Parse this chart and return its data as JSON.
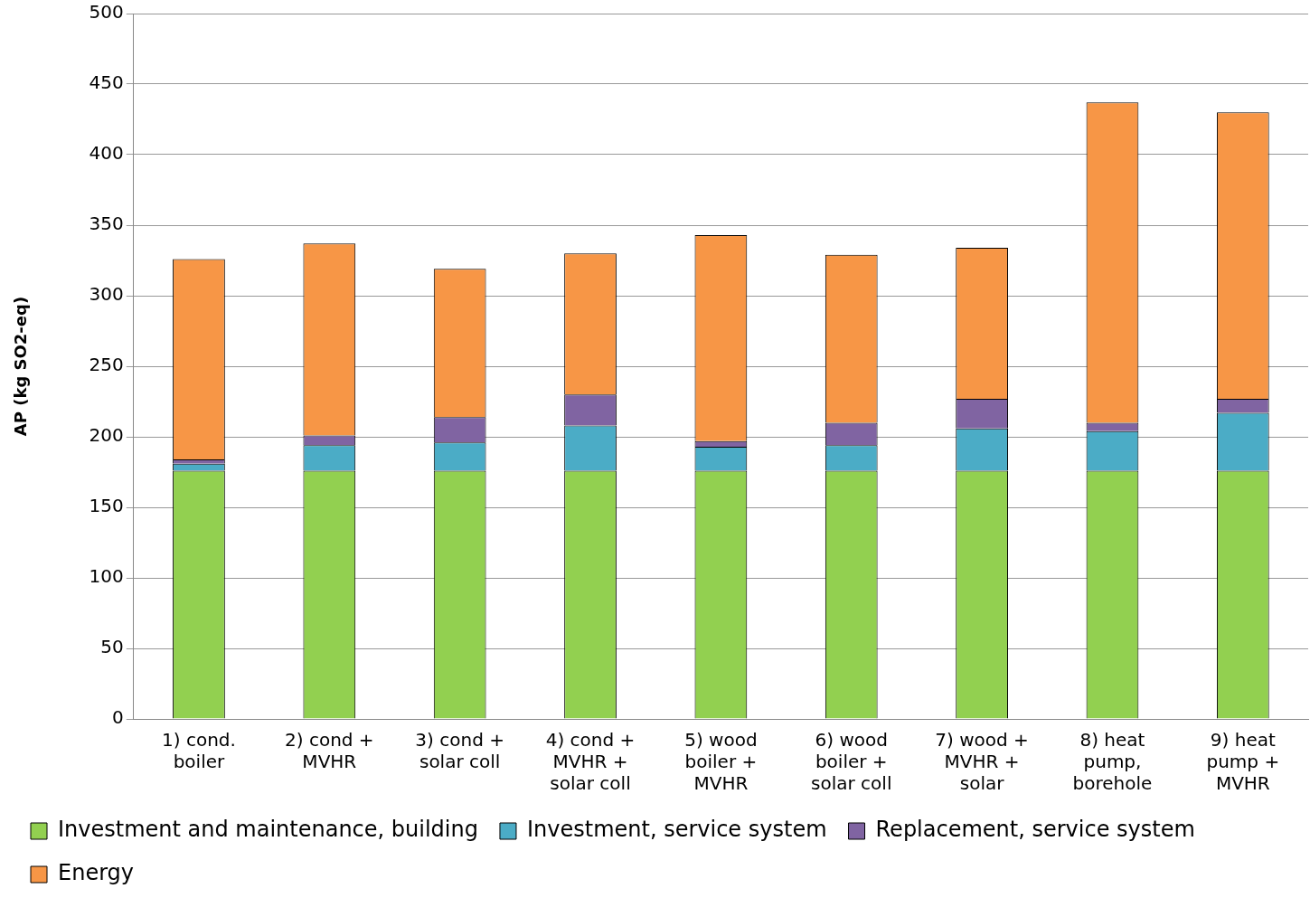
{
  "chart_data": {
    "type": "bar",
    "stacked": true,
    "ylabel": "AP (kg SO2-eq)",
    "categories": [
      "1) cond. boiler",
      "2) cond + MVHR",
      "3) cond + solar coll",
      "4) cond + MVHR + solar coll",
      "5) wood boiler + MVHR",
      "6) wood boiler + solar coll",
      "7) wood + MVHR + solar",
      "8) heat pump, borehole",
      "9) heat pump + MVHR"
    ],
    "series": [
      {
        "name": "Investment and maintenance, building",
        "color": "#92d050",
        "values": [
          176,
          176,
          176,
          176,
          176,
          176,
          176,
          176,
          176
        ]
      },
      {
        "name": "Investment, service system",
        "color": "#4bacc6",
        "values": [
          5,
          18,
          20,
          32,
          17,
          18,
          30,
          28,
          41
        ]
      },
      {
        "name": "Replacement, service system",
        "color": "#8064a2",
        "values": [
          3,
          7,
          18,
          22,
          4,
          16,
          21,
          6,
          10
        ]
      },
      {
        "name": "Energy",
        "color": "#f79646",
        "values": [
          142,
          136,
          105,
          100,
          146,
          119,
          107,
          227,
          203
        ]
      }
    ],
    "ylim": [
      0,
      500
    ],
    "yticks": [
      0,
      50,
      100,
      150,
      200,
      250,
      300,
      350,
      400,
      450,
      500
    ],
    "grid": "y",
    "legend": "bottom"
  }
}
